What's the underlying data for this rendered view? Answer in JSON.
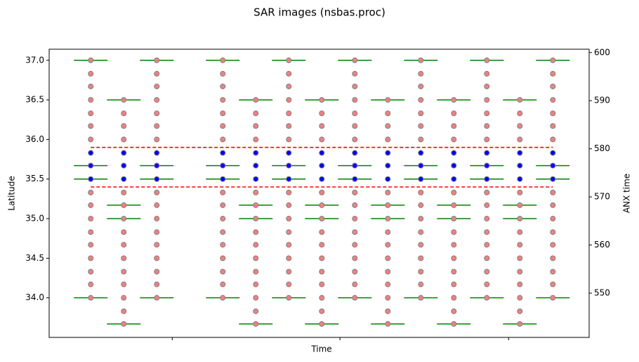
{
  "chart_data": {
    "type": "scatter",
    "title": "SAR images (nsbas.proc)",
    "x_label": "Time",
    "y_label": "Latitude",
    "y2_label": "ANX time",
    "xlim": [
      -1.26,
      15.1
    ],
    "xticks": [
      2.47,
      7.55,
      12.66
    ],
    "ylim": [
      33.5,
      37.14
    ],
    "yticks": [
      {
        "value": 34,
        "label": "34.0"
      },
      {
        "value": 34.5,
        "label": "34.5"
      },
      {
        "value": 35,
        "label": "35.0"
      },
      {
        "value": 35.5,
        "label": "35.5"
      },
      {
        "value": 36,
        "label": "36.0"
      },
      {
        "value": 36.5,
        "label": "36.5"
      },
      {
        "value": 37,
        "label": "37.0"
      }
    ],
    "y2lim": [
      540.8,
      600.7
    ],
    "y2ticks": [
      550,
      560,
      570,
      580,
      590,
      600
    ],
    "point_color": "#f08080",
    "selected_color": "#0000ff",
    "bound_color": "#008000",
    "line_color": "#ff0000",
    "limit_lines": {
      "x": [
        0,
        14
      ],
      "values": [
        35.9,
        35.4
      ]
    },
    "columns": [
      {
        "x": 0,
        "latitudes": [
          37.0,
          36.83,
          36.67,
          36.5,
          36.33,
          36.17,
          36.0,
          35.83,
          35.67,
          35.5,
          35.33,
          35.17,
          35.0,
          34.83,
          34.67,
          34.5,
          34.33,
          34.17,
          34.0
        ],
        "selected": [
          35.83,
          35.67,
          35.5
        ],
        "bounds": [
          37.0,
          35.67,
          35.5,
          34.0
        ]
      },
      {
        "x": 1,
        "latitudes": [
          36.5,
          36.33,
          36.17,
          36.0,
          35.83,
          35.67,
          35.5,
          35.33,
          35.17,
          35.0,
          34.83,
          34.67,
          34.5,
          34.33,
          34.17,
          34.0,
          33.83,
          33.67
        ],
        "selected": [
          35.83,
          35.67,
          35.5
        ],
        "bounds": [
          36.5,
          35.17,
          35.0,
          33.67
        ]
      },
      {
        "x": 2,
        "latitudes": [
          37.0,
          36.83,
          36.67,
          36.5,
          36.33,
          36.17,
          36.0,
          35.83,
          35.67,
          35.5,
          35.33,
          35.17,
          35.0,
          34.83,
          34.67,
          34.5,
          34.33,
          34.17,
          34.0
        ],
        "selected": [
          35.83,
          35.67,
          35.5
        ],
        "bounds": [
          37.0,
          35.67,
          35.5,
          34.0
        ]
      },
      {
        "x": 4,
        "latitudes": [
          37.0,
          36.83,
          36.67,
          36.5,
          36.33,
          36.17,
          36.0,
          35.83,
          35.67,
          35.5,
          35.33,
          35.17,
          35.0,
          34.83,
          34.67,
          34.5,
          34.33,
          34.17,
          34.0
        ],
        "selected": [
          35.83,
          35.67,
          35.5
        ],
        "bounds": [
          37.0,
          35.67,
          35.5,
          34.0
        ]
      },
      {
        "x": 5,
        "latitudes": [
          36.5,
          36.33,
          36.17,
          36.0,
          35.83,
          35.67,
          35.5,
          35.33,
          35.17,
          35.0,
          34.83,
          34.67,
          34.5,
          34.33,
          34.17,
          34.0,
          33.83,
          33.67
        ],
        "selected": [
          35.83,
          35.67,
          35.5
        ],
        "bounds": [
          36.5,
          35.17,
          35.0,
          33.67
        ]
      },
      {
        "x": 6,
        "latitudes": [
          37.0,
          36.83,
          36.67,
          36.5,
          36.33,
          36.17,
          36.0,
          35.83,
          35.67,
          35.5,
          35.33,
          35.17,
          35.0,
          34.83,
          34.67,
          34.5,
          34.33,
          34.17,
          34.0
        ],
        "selected": [
          35.83,
          35.67,
          35.5
        ],
        "bounds": [
          37.0,
          35.67,
          35.5,
          34.0
        ]
      },
      {
        "x": 7,
        "latitudes": [
          36.5,
          36.33,
          36.17,
          36.0,
          35.83,
          35.67,
          35.5,
          35.33,
          35.17,
          35.0,
          34.83,
          34.67,
          34.5,
          34.33,
          34.17,
          34.0,
          33.83,
          33.67
        ],
        "selected": [
          35.83,
          35.67,
          35.5
        ],
        "bounds": [
          36.5,
          35.17,
          35.0,
          33.67
        ]
      },
      {
        "x": 8,
        "latitudes": [
          37.0,
          36.83,
          36.67,
          36.5,
          36.33,
          36.17,
          36.0,
          35.83,
          35.67,
          35.5,
          35.33,
          35.17,
          35.0,
          34.83,
          34.67,
          34.5,
          34.33,
          34.17,
          34.0
        ],
        "selected": [
          35.83,
          35.67,
          35.5
        ],
        "bounds": [
          37.0,
          35.67,
          35.5,
          34.0
        ]
      },
      {
        "x": 9,
        "latitudes": [
          36.5,
          36.33,
          36.17,
          36.0,
          35.83,
          35.67,
          35.5,
          35.33,
          35.17,
          35.0,
          34.83,
          34.67,
          34.5,
          34.33,
          34.17,
          34.0,
          33.83,
          33.67
        ],
        "selected": [
          35.83,
          35.67,
          35.5
        ],
        "bounds": [
          36.5,
          35.17,
          35.0,
          33.67
        ]
      },
      {
        "x": 10,
        "latitudes": [
          37.0,
          36.83,
          36.67,
          36.5,
          36.33,
          36.17,
          36.0,
          35.83,
          35.67,
          35.5,
          35.33,
          35.17,
          35.0,
          34.83,
          34.67,
          34.5,
          34.33,
          34.17,
          34.0
        ],
        "selected": [
          35.83,
          35.67,
          35.5
        ],
        "bounds": [
          37.0,
          35.67,
          35.5,
          34.0
        ]
      },
      {
        "x": 11,
        "latitudes": [
          36.5,
          36.33,
          36.17,
          36.0,
          35.83,
          35.67,
          35.5,
          35.33,
          35.17,
          35.0,
          34.83,
          34.67,
          34.5,
          34.33,
          34.17,
          34.0,
          33.83,
          33.67
        ],
        "selected": [
          35.83,
          35.67,
          35.5
        ],
        "bounds": [
          36.5,
          35.17,
          35.0,
          33.67
        ]
      },
      {
        "x": 12,
        "latitudes": [
          37.0,
          36.83,
          36.67,
          36.5,
          36.33,
          36.17,
          36.0,
          35.83,
          35.67,
          35.5,
          35.33,
          35.17,
          35.0,
          34.83,
          34.67,
          34.5,
          34.33,
          34.17,
          34.0
        ],
        "selected": [
          35.83,
          35.67,
          35.5
        ],
        "bounds": [
          37.0,
          35.67,
          35.5,
          34.0
        ]
      },
      {
        "x": 13,
        "latitudes": [
          36.5,
          36.33,
          36.17,
          36.0,
          35.83,
          35.67,
          35.5,
          35.33,
          35.17,
          35.0,
          34.83,
          34.67,
          34.5,
          34.33,
          34.17,
          34.0,
          33.83,
          33.67
        ],
        "selected": [
          35.83,
          35.67,
          35.5
        ],
        "bounds": [
          36.5,
          35.17,
          35.0,
          33.67
        ]
      },
      {
        "x": 14,
        "latitudes": [
          37.0,
          36.83,
          36.67,
          36.5,
          36.33,
          36.17,
          36.0,
          35.83,
          35.67,
          35.5,
          35.33,
          35.17,
          35.0,
          34.83,
          34.67,
          34.5,
          34.33,
          34.17,
          34.0
        ],
        "selected": [
          35.83,
          35.67,
          35.5
        ],
        "bounds": [
          37.0,
          35.67,
          35.5,
          34.0
        ]
      }
    ]
  }
}
